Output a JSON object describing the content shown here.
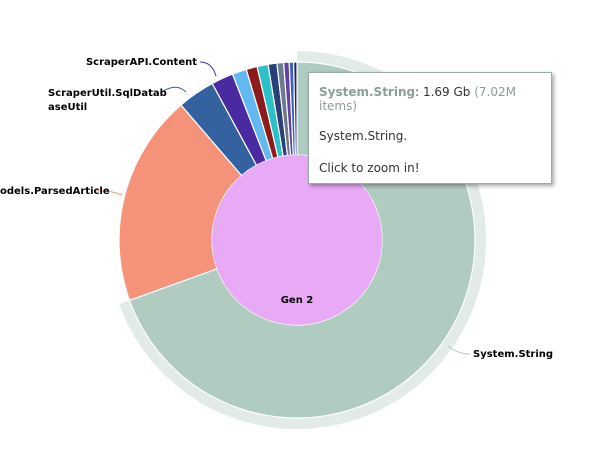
{
  "chart_data": {
    "type": "pie",
    "categories": [
      "System.String",
      "odels.ParsedArticle",
      [
        "ScraperUtil.SqlDatab",
        "aseUtil"
      ],
      "ScraperAPI.Content",
      null,
      null,
      null,
      null,
      null,
      null,
      null,
      null
    ],
    "values": [
      69.5,
      19.2,
      3.4,
      2.0,
      1.3,
      1.0,
      1.0,
      0.8,
      0.6,
      0.5,
      0.4,
      0.3
    ],
    "colors": [
      "#b0cbbf",
      "#f4937a",
      "#3461a0",
      "#4a2aa0",
      "#62b8f0",
      "#8e1b1b",
      "#2cc0c8",
      "#2a3f7a",
      "#6c7a90",
      "#6040a0",
      "#3a60c0",
      "#222266"
    ],
    "center_label": "Gen 2",
    "center_color": "#e8aaf5",
    "highlight": 0,
    "tooltip": {
      "name": "System.String",
      "value": ": 1.69 Gb",
      "items": "(7.02M items)",
      "lines": [
        "System.String.",
        "Click to zoom in!"
      ]
    }
  }
}
